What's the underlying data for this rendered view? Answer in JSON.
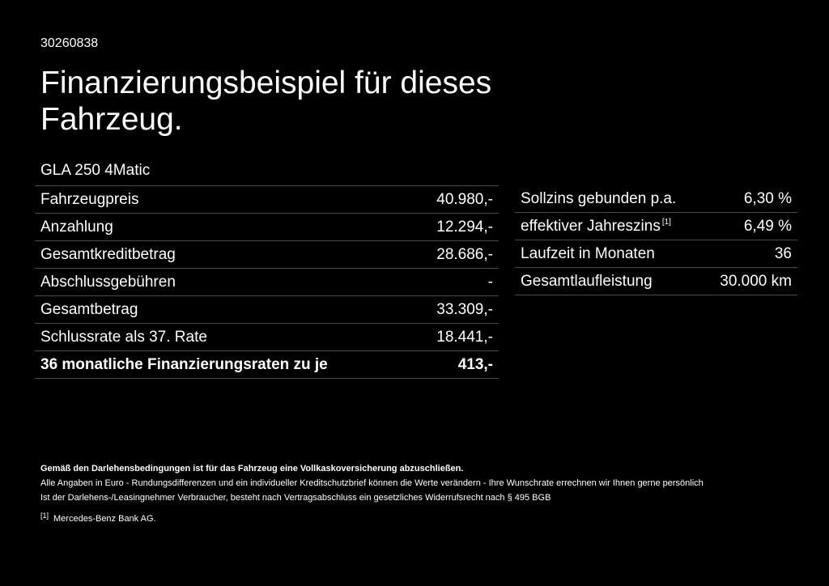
{
  "offer_id": "30260838",
  "title": "Finanzierungsbeispiel für dieses Fahrzeug.",
  "model": "GLA 250 4Matic",
  "left_rows": [
    {
      "label": "Fahrzeugpreis",
      "value": "40.980,-"
    },
    {
      "label": "Anzahlung",
      "value": "12.294,-"
    },
    {
      "label": "Gesamtkreditbetrag",
      "value": "28.686,-"
    },
    {
      "label": "Abschlussgebühren",
      "value": "-"
    },
    {
      "label": "Gesamtbetrag",
      "value": "33.309,-"
    },
    {
      "label": "Schlussrate als 37. Rate",
      "value": "18.441,-"
    },
    {
      "label": "36 monatliche Finanzierungsraten zu je",
      "value": "413,-"
    }
  ],
  "right_rows": [
    {
      "label": "Sollzins gebunden p.a.",
      "value": "6,30 %"
    },
    {
      "label": "effektiver Jahreszins",
      "footnote": "[1]",
      "value": "6,49 %"
    },
    {
      "label": "Laufzeit in Monaten",
      "value": "36"
    },
    {
      "label": "Gesamtlaufleistung",
      "value": "30.000 km"
    }
  ],
  "footer": {
    "line1": "Gemäß den Darlehensbedingungen ist für das Fahrzeug eine Vollkaskoversicherung abzuschließen.",
    "line2": "Alle Angaben in Euro - Rundungsdifferenzen und ein individueller Kreditschutzbrief können die Werte verändern - Ihre Wunschrate errechnen wir Ihnen gerne persönlich",
    "line3": "Ist der Darlehens-/Leasingnehmer Verbraucher, besteht nach Vertragsabschluss ein gesetzliches Widerrufsrecht nach § 495 BGB",
    "footnote_marker": "[1]",
    "footnote_text": "Mercedes-Benz Bank AG."
  }
}
